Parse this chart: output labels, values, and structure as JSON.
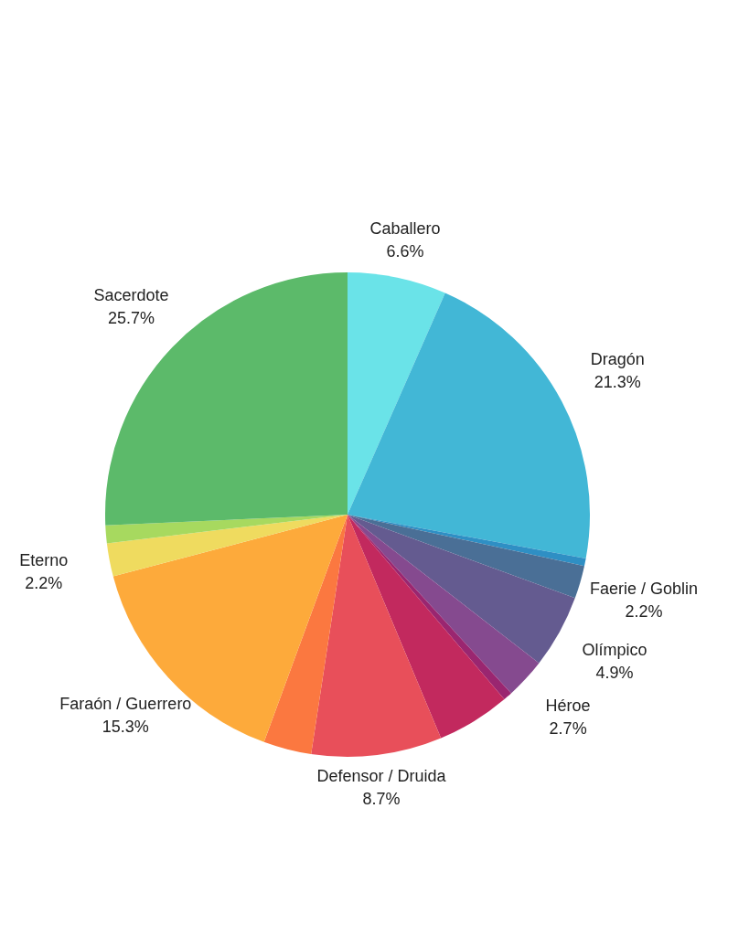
{
  "chart_data": {
    "type": "pie",
    "categories": [
      "Caballero",
      "Dragón",
      null,
      "Faerie / Goblin",
      "Olímpico",
      "Héroe",
      null,
      null,
      "Defensor / Druida",
      null,
      "Faraón / Guerrero",
      "Eterno",
      null,
      "Sacerdote"
    ],
    "values": [
      6.6,
      21.3,
      0.5,
      2.2,
      4.9,
      2.7,
      0.6,
      4.9,
      8.7,
      3.2,
      15.3,
      2.2,
      1.2,
      25.7
    ],
    "value_labels": [
      "6.6%",
      "21.3%",
      null,
      "2.2%",
      "4.9%",
      "2.7%",
      null,
      null,
      "8.7%",
      null,
      "15.3%",
      "2.2%",
      null,
      "25.7%"
    ],
    "colors": [
      "#6ae3e8",
      "#42b7d6",
      "#2f8fc4",
      "#4a6f96",
      "#645b90",
      "#854a8f",
      "#9a2670",
      "#c2295e",
      "#e84f5a",
      "#fb7840",
      "#fdaa3b",
      "#efdb5f",
      "#a7d95f",
      "#5cba6a"
    ],
    "legend": false
  }
}
